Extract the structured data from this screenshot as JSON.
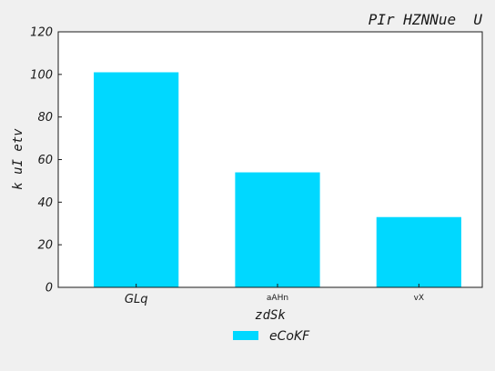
{
  "chart_data": {
    "type": "bar",
    "title": "PIr HZNNue  U",
    "xlabel": "zdSk",
    "ylabel": "k uI etv",
    "categories": [
      "GLq",
      "aAHn",
      "vX"
    ],
    "series": [
      {
        "name": "eCoKF",
        "values": [
          101,
          54,
          33
        ],
        "color": "#00d8ff"
      }
    ],
    "ylim": [
      0,
      120
    ],
    "yticks": [
      0,
      20,
      40,
      60,
      80,
      100,
      120
    ],
    "grid": false,
    "legend_position": "bottom-center"
  }
}
